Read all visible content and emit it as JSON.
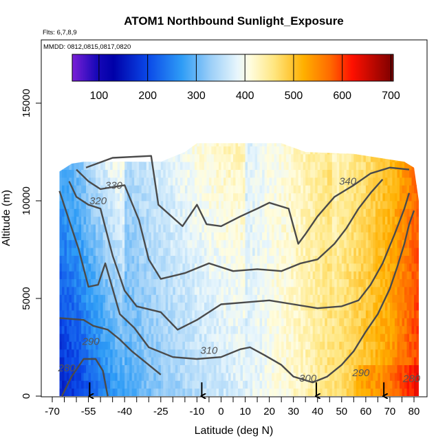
{
  "chart_data": {
    "type": "heatmap",
    "title": "ATOM1 Northbound Sunlight_Exposure",
    "flights_label": "Flts: 6,7,8,9",
    "dates_label": "MMDD: 0812,0815,0817,0820",
    "xlabel": "Latitude (deg N)",
    "ylabel": "Altitude (m)",
    "xlim": [
      -70,
      83
    ],
    "ylim": [
      0,
      17500
    ],
    "x_ticks": [
      {
        "v": -70,
        "label": "-70"
      },
      {
        "v": -55,
        "label": "-55"
      },
      {
        "v": -40,
        "label": "-40"
      },
      {
        "v": -25,
        "label": "-25"
      },
      {
        "v": -10,
        "label": "-10"
      },
      {
        "v": 0,
        "label": "0"
      },
      {
        "v": 10,
        "label": "10"
      },
      {
        "v": 20,
        "label": "20"
      },
      {
        "v": 30,
        "label": "30"
      },
      {
        "v": 40,
        "label": "40"
      },
      {
        "v": 50,
        "label": "50"
      },
      {
        "v": 60,
        "label": "60"
      },
      {
        "v": 70,
        "label": "70"
      },
      {
        "v": 80,
        "label": "80"
      }
    ],
    "x_minor_ticks": [
      -65,
      -60,
      -50,
      -45,
      -35,
      -30,
      -20,
      -15,
      -5,
      5,
      15,
      25,
      35,
      45,
      55,
      65,
      75
    ],
    "y_ticks": [
      {
        "v": 0,
        "label": "0"
      },
      {
        "v": 5000,
        "label": "5000"
      },
      {
        "v": 10000,
        "label": "10000"
      },
      {
        "v": 15000,
        "label": "15000"
      }
    ],
    "colorbar": {
      "min": 45,
      "max": 705,
      "ticks": [
        100,
        200,
        300,
        400,
        500,
        600,
        700
      ],
      "stops": [
        {
          "v": 45,
          "color": "#7a1fd6"
        },
        {
          "v": 95,
          "color": "#1808b8"
        },
        {
          "v": 130,
          "color": "#0000a8"
        },
        {
          "v": 200,
          "color": "#0a48e8"
        },
        {
          "v": 270,
          "color": "#2e9cf6"
        },
        {
          "v": 330,
          "color": "#9ccff8"
        },
        {
          "v": 385,
          "color": "#e8f6fc"
        },
        {
          "v": 410,
          "color": "#fffde0"
        },
        {
          "v": 460,
          "color": "#ffe680"
        },
        {
          "v": 520,
          "color": "#ffb000"
        },
        {
          "v": 575,
          "color": "#ff6a00"
        },
        {
          "v": 620,
          "color": "#ff1000"
        },
        {
          "v": 705,
          "color": "#7a0000"
        }
      ]
    },
    "field": {
      "lat_range": [
        -67,
        82
      ],
      "top_altitude": [
        [
          -67,
          11500
        ],
        [
          -62,
          11900
        ],
        [
          -57,
          12000
        ],
        [
          -25,
          12000
        ],
        [
          -15,
          12500
        ],
        [
          -10,
          12950
        ],
        [
          25,
          12950
        ],
        [
          35,
          12500
        ],
        [
          55,
          12400
        ],
        [
          76,
          12000
        ],
        [
          80,
          11700
        ],
        [
          82,
          10000
        ],
        [
          82,
          6500
        ],
        [
          82,
          0
        ]
      ],
      "value_profile": [
        [
          -67,
          160
        ],
        [
          -60,
          185
        ],
        [
          -55,
          215
        ],
        [
          -50,
          240
        ],
        [
          -45,
          265
        ],
        [
          -40,
          285
        ],
        [
          -30,
          310
        ],
        [
          -20,
          330
        ],
        [
          -10,
          350
        ],
        [
          0,
          365
        ],
        [
          10,
          375
        ],
        [
          20,
          400
        ],
        [
          30,
          420
        ],
        [
          40,
          445
        ],
        [
          50,
          475
        ],
        [
          60,
          505
        ],
        [
          70,
          540
        ],
        [
          75,
          570
        ],
        [
          82,
          610
        ]
      ]
    },
    "contours": [
      {
        "label": "280",
        "points": [
          [
            -66,
            0
          ],
          [
            -62,
            1000
          ],
          [
            -57,
            1900
          ],
          [
            -52,
            1900
          ],
          [
            -49,
            1300
          ],
          [
            -47,
            0
          ]
        ]
      },
      {
        "label": "290",
        "points": [
          [
            -67,
            4000
          ],
          [
            -57,
            3900
          ],
          [
            -53,
            3600
          ],
          [
            -47,
            3400
          ],
          [
            -42,
            2900
          ],
          [
            -37,
            2300
          ],
          [
            -30,
            1600
          ],
          [
            -25,
            1100
          ]
        ]
      },
      {
        "label": "310",
        "points": [
          [
            -67,
            10500
          ],
          [
            -63,
            9000
          ],
          [
            -59,
            7500
          ],
          [
            -55,
            5600
          ],
          [
            -51,
            5700
          ],
          [
            -48,
            6800
          ],
          [
            -45,
            5500
          ],
          [
            -42,
            4200
          ],
          [
            -36,
            3500
          ],
          [
            -30,
            2500
          ],
          [
            -20,
            2000
          ],
          [
            -10,
            1900
          ],
          [
            0,
            2000
          ],
          [
            8,
            2400
          ],
          [
            12,
            2500
          ],
          [
            18,
            2100
          ],
          [
            25,
            1600
          ],
          [
            30,
            1000
          ],
          [
            38,
            700
          ],
          [
            44,
            1000
          ],
          [
            50,
            1600
          ],
          [
            55,
            2300
          ],
          [
            60,
            3300
          ],
          [
            65,
            4200
          ],
          [
            70,
            5500
          ],
          [
            73,
            6600
          ],
          [
            76,
            7800
          ],
          [
            78,
            8800
          ],
          [
            80,
            9500
          ]
        ]
      },
      {
        "label": "320",
        "points": [
          [
            -63,
            11000
          ],
          [
            -60,
            10200
          ],
          [
            -55,
            9800
          ],
          [
            -50,
            9600
          ],
          [
            -45,
            7200
          ],
          [
            -40,
            5400
          ],
          [
            -35,
            4600
          ],
          [
            -25,
            4300
          ],
          [
            -18,
            3400
          ],
          [
            -10,
            3900
          ],
          [
            0,
            4700
          ],
          [
            10,
            4800
          ],
          [
            20,
            4900
          ],
          [
            30,
            4700
          ],
          [
            40,
            4500
          ],
          [
            50,
            4600
          ],
          [
            57,
            4900
          ],
          [
            62,
            5700
          ],
          [
            67,
            6800
          ],
          [
            72,
            8300
          ],
          [
            76,
            9600
          ],
          [
            78,
            10400
          ]
        ]
      },
      {
        "label": "330",
        "points": [
          [
            -60,
            11600
          ],
          [
            -55,
            11000
          ],
          [
            -50,
            10600
          ],
          [
            -45,
            10700
          ],
          [
            -40,
            10800
          ],
          [
            -34,
            9000
          ],
          [
            -30,
            7000
          ],
          [
            -25,
            6000
          ],
          [
            -15,
            6300
          ],
          [
            -5,
            6800
          ],
          [
            5,
            6400
          ],
          [
            15,
            6500
          ],
          [
            25,
            6400
          ],
          [
            33,
            6800
          ],
          [
            40,
            7000
          ],
          [
            47,
            7800
          ],
          [
            52,
            8600
          ],
          [
            57,
            9600
          ],
          [
            62,
            10400
          ],
          [
            67,
            11100
          ]
        ]
      },
      {
        "label": "340",
        "points": [
          [
            -56,
            11700
          ],
          [
            -45,
            12200
          ],
          [
            -29,
            12300
          ],
          [
            -26,
            9800
          ],
          [
            -16,
            8700
          ],
          [
            -10,
            9800
          ],
          [
            -6,
            8800
          ],
          [
            0,
            8700
          ],
          [
            8,
            9200
          ],
          [
            15,
            9600
          ],
          [
            20,
            9900
          ],
          [
            28,
            9600
          ],
          [
            32,
            7800
          ],
          [
            35,
            8300
          ],
          [
            40,
            9200
          ],
          [
            47,
            10200
          ],
          [
            55,
            10800
          ],
          [
            62,
            11400
          ],
          [
            70,
            11700
          ],
          [
            78,
            11600
          ]
        ]
      }
    ],
    "contour_labels": [
      {
        "text": "330",
        "x": -44.5,
        "y": 10800
      },
      {
        "text": "320",
        "x": -51,
        "y": 10000
      },
      {
        "text": "340",
        "x": 52.5,
        "y": 11000
      },
      {
        "text": "290",
        "x": -54,
        "y": 2800
      },
      {
        "text": "280",
        "x": -64,
        "y": 1450
      },
      {
        "text": "310",
        "x": -5,
        "y": 2350
      },
      {
        "text": "300",
        "x": 36,
        "y": 920
      },
      {
        "text": "290",
        "x": 58,
        "y": 1200
      },
      {
        "text": "280",
        "x": 79,
        "y": 900
      }
    ],
    "arrows": [
      -54.5,
      -8,
      39.5,
      67.5
    ]
  }
}
